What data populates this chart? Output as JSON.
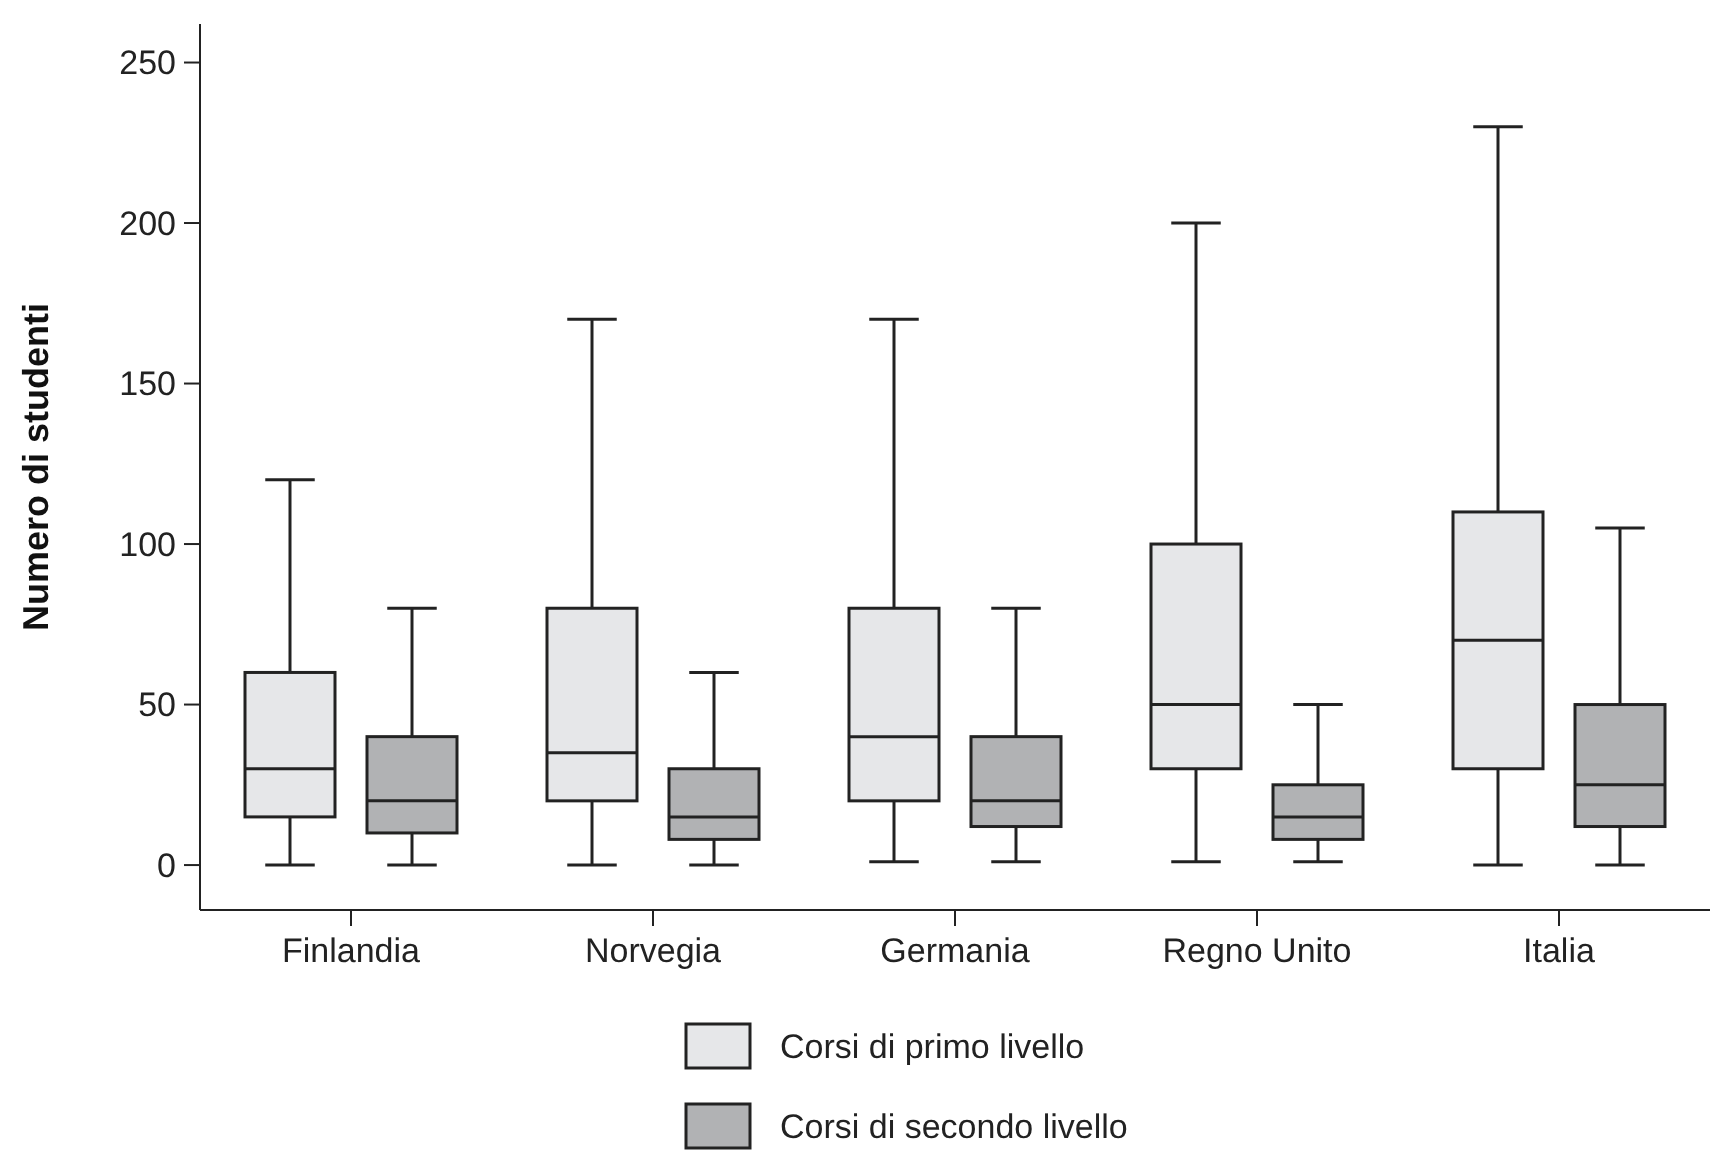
{
  "chart_data": {
    "type": "box",
    "ylabel": "Numero di studenti",
    "categories": [
      "Finlandia",
      "Norvegia",
      "Germania",
      "Regno Unito",
      "Italia"
    ],
    "ylim": [
      -14,
      262
    ],
    "yticks": [
      0,
      50,
      100,
      150,
      200,
      250
    ],
    "grid": false,
    "legend": "bottom",
    "series": [
      {
        "name": "Corsi di primo livello",
        "color": "#e6e7e9",
        "boxes": [
          {
            "low": 0,
            "q1": 15,
            "median": 30,
            "q3": 60,
            "high": 120
          },
          {
            "low": 0,
            "q1": 20,
            "median": 35,
            "q3": 80,
            "high": 170
          },
          {
            "low": 1,
            "q1": 20,
            "median": 40,
            "q3": 80,
            "high": 170
          },
          {
            "low": 1,
            "q1": 30,
            "median": 50,
            "q3": 100,
            "high": 200
          },
          {
            "low": 0,
            "q1": 30,
            "median": 70,
            "q3": 110,
            "high": 230
          }
        ]
      },
      {
        "name": "Corsi di secondo livello",
        "color": "#b1b2b4",
        "boxes": [
          {
            "low": 0,
            "q1": 10,
            "median": 20,
            "q3": 40,
            "high": 80
          },
          {
            "low": 0,
            "q1": 8,
            "median": 15,
            "q3": 30,
            "high": 60
          },
          {
            "low": 1,
            "q1": 12,
            "median": 20,
            "q3": 40,
            "high": 80
          },
          {
            "low": 1,
            "q1": 8,
            "median": 15,
            "q3": 25,
            "high": 50
          },
          {
            "low": 0,
            "q1": 12,
            "median": 25,
            "q3": 50,
            "high": 105
          }
        ]
      }
    ]
  }
}
